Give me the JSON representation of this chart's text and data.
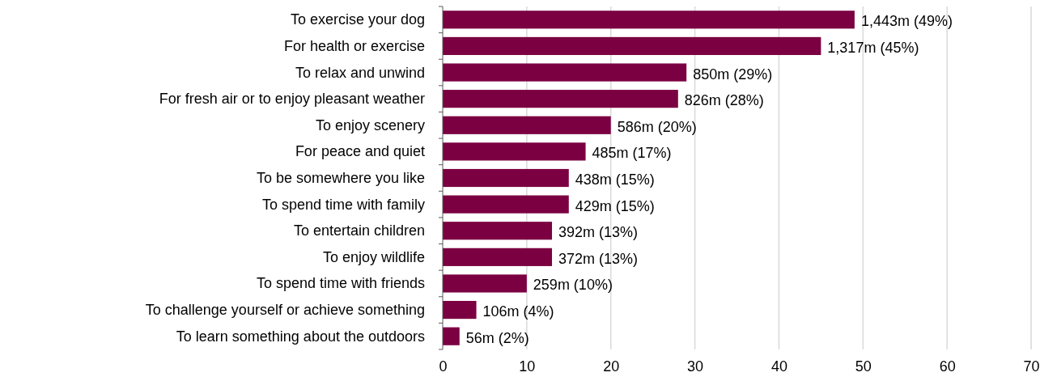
{
  "chart_data": {
    "type": "bar",
    "orientation": "horizontal",
    "categories": [
      "To exercise your dog",
      "For health or exercise",
      "To relax and unwind",
      "For fresh air or to enjoy pleasant weather",
      "To enjoy scenery",
      "For peace and quiet",
      "To be somewhere you like",
      "To spend time with family",
      "To entertain children",
      "To enjoy wildlife",
      "To spend time with friends",
      "To challenge yourself or achieve something",
      "To learn something about the outdoors"
    ],
    "values": [
      49,
      45,
      29,
      28,
      20,
      17,
      15,
      15,
      13,
      13,
      10,
      4,
      2
    ],
    "value_labels": [
      "1,443m (49%)",
      "1,317m (45%)",
      "850m (29%)",
      "826m (28%)",
      "586m (20%)",
      "485m (17%)",
      "438m (15%)",
      "429m (15%)",
      "392m (13%)",
      "372m (13%)",
      "259m (10%)",
      "106m (4%)",
      "56m (2%)"
    ],
    "color": "#7b0041",
    "xlim": [
      0,
      70
    ],
    "xticks": [
      0,
      10,
      20,
      30,
      40,
      50,
      60,
      70
    ],
    "grid": "x"
  }
}
